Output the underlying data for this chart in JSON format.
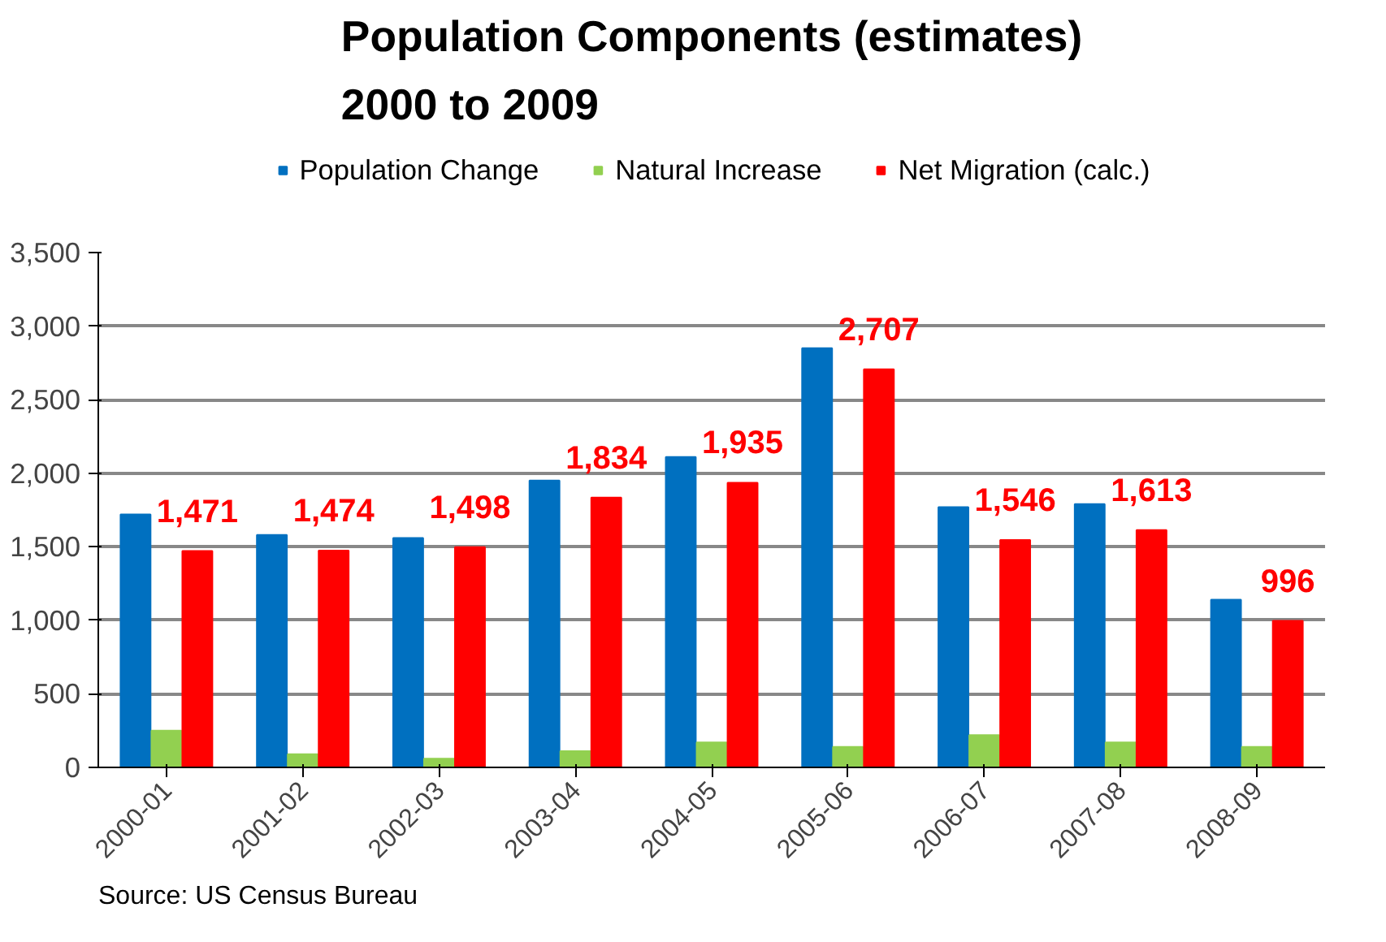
{
  "chart_data": {
    "type": "bar",
    "title": "Population Components (estimates)\n2000 to 2009",
    "categories": [
      "2000-01",
      "2001-02",
      "2002-03",
      "2003-04",
      "2004-05",
      "2005-06",
      "2006-07",
      "2007-08",
      "2008-09"
    ],
    "series": [
      {
        "name": "Population Change",
        "color": "#0070c0",
        "values": [
          1720,
          1580,
          1560,
          1950,
          2110,
          2850,
          1770,
          1790,
          1140
        ]
      },
      {
        "name": "Natural Increase",
        "color": "#92d050",
        "values": [
          250,
          90,
          60,
          110,
          170,
          140,
          220,
          170,
          140
        ]
      },
      {
        "name": "Net Migration (calc.)",
        "color": "#ff0000",
        "values": [
          1471,
          1474,
          1498,
          1834,
          1935,
          2707,
          1546,
          1613,
          996
        ],
        "value_labels": [
          "1,471",
          "1,474",
          "1,498",
          "1,834",
          "1,935",
          "2,707",
          "1,546",
          "1,613",
          "996"
        ]
      }
    ],
    "ylim": [
      0,
      3500
    ],
    "yticks": [
      {
        "value": 0,
        "label": "0"
      },
      {
        "value": 500,
        "label": "500"
      },
      {
        "value": 1000,
        "label": "1,000"
      },
      {
        "value": 1500,
        "label": "1,500"
      },
      {
        "value": 2000,
        "label": "2,000"
      },
      {
        "value": 2500,
        "label": "2,500"
      },
      {
        "value": 3000,
        "label": "3,000"
      },
      {
        "value": 3500,
        "label": "3,500"
      }
    ],
    "grid": "y",
    "legend": "top",
    "annotations": [
      "Source: US Census Bureau"
    ]
  }
}
